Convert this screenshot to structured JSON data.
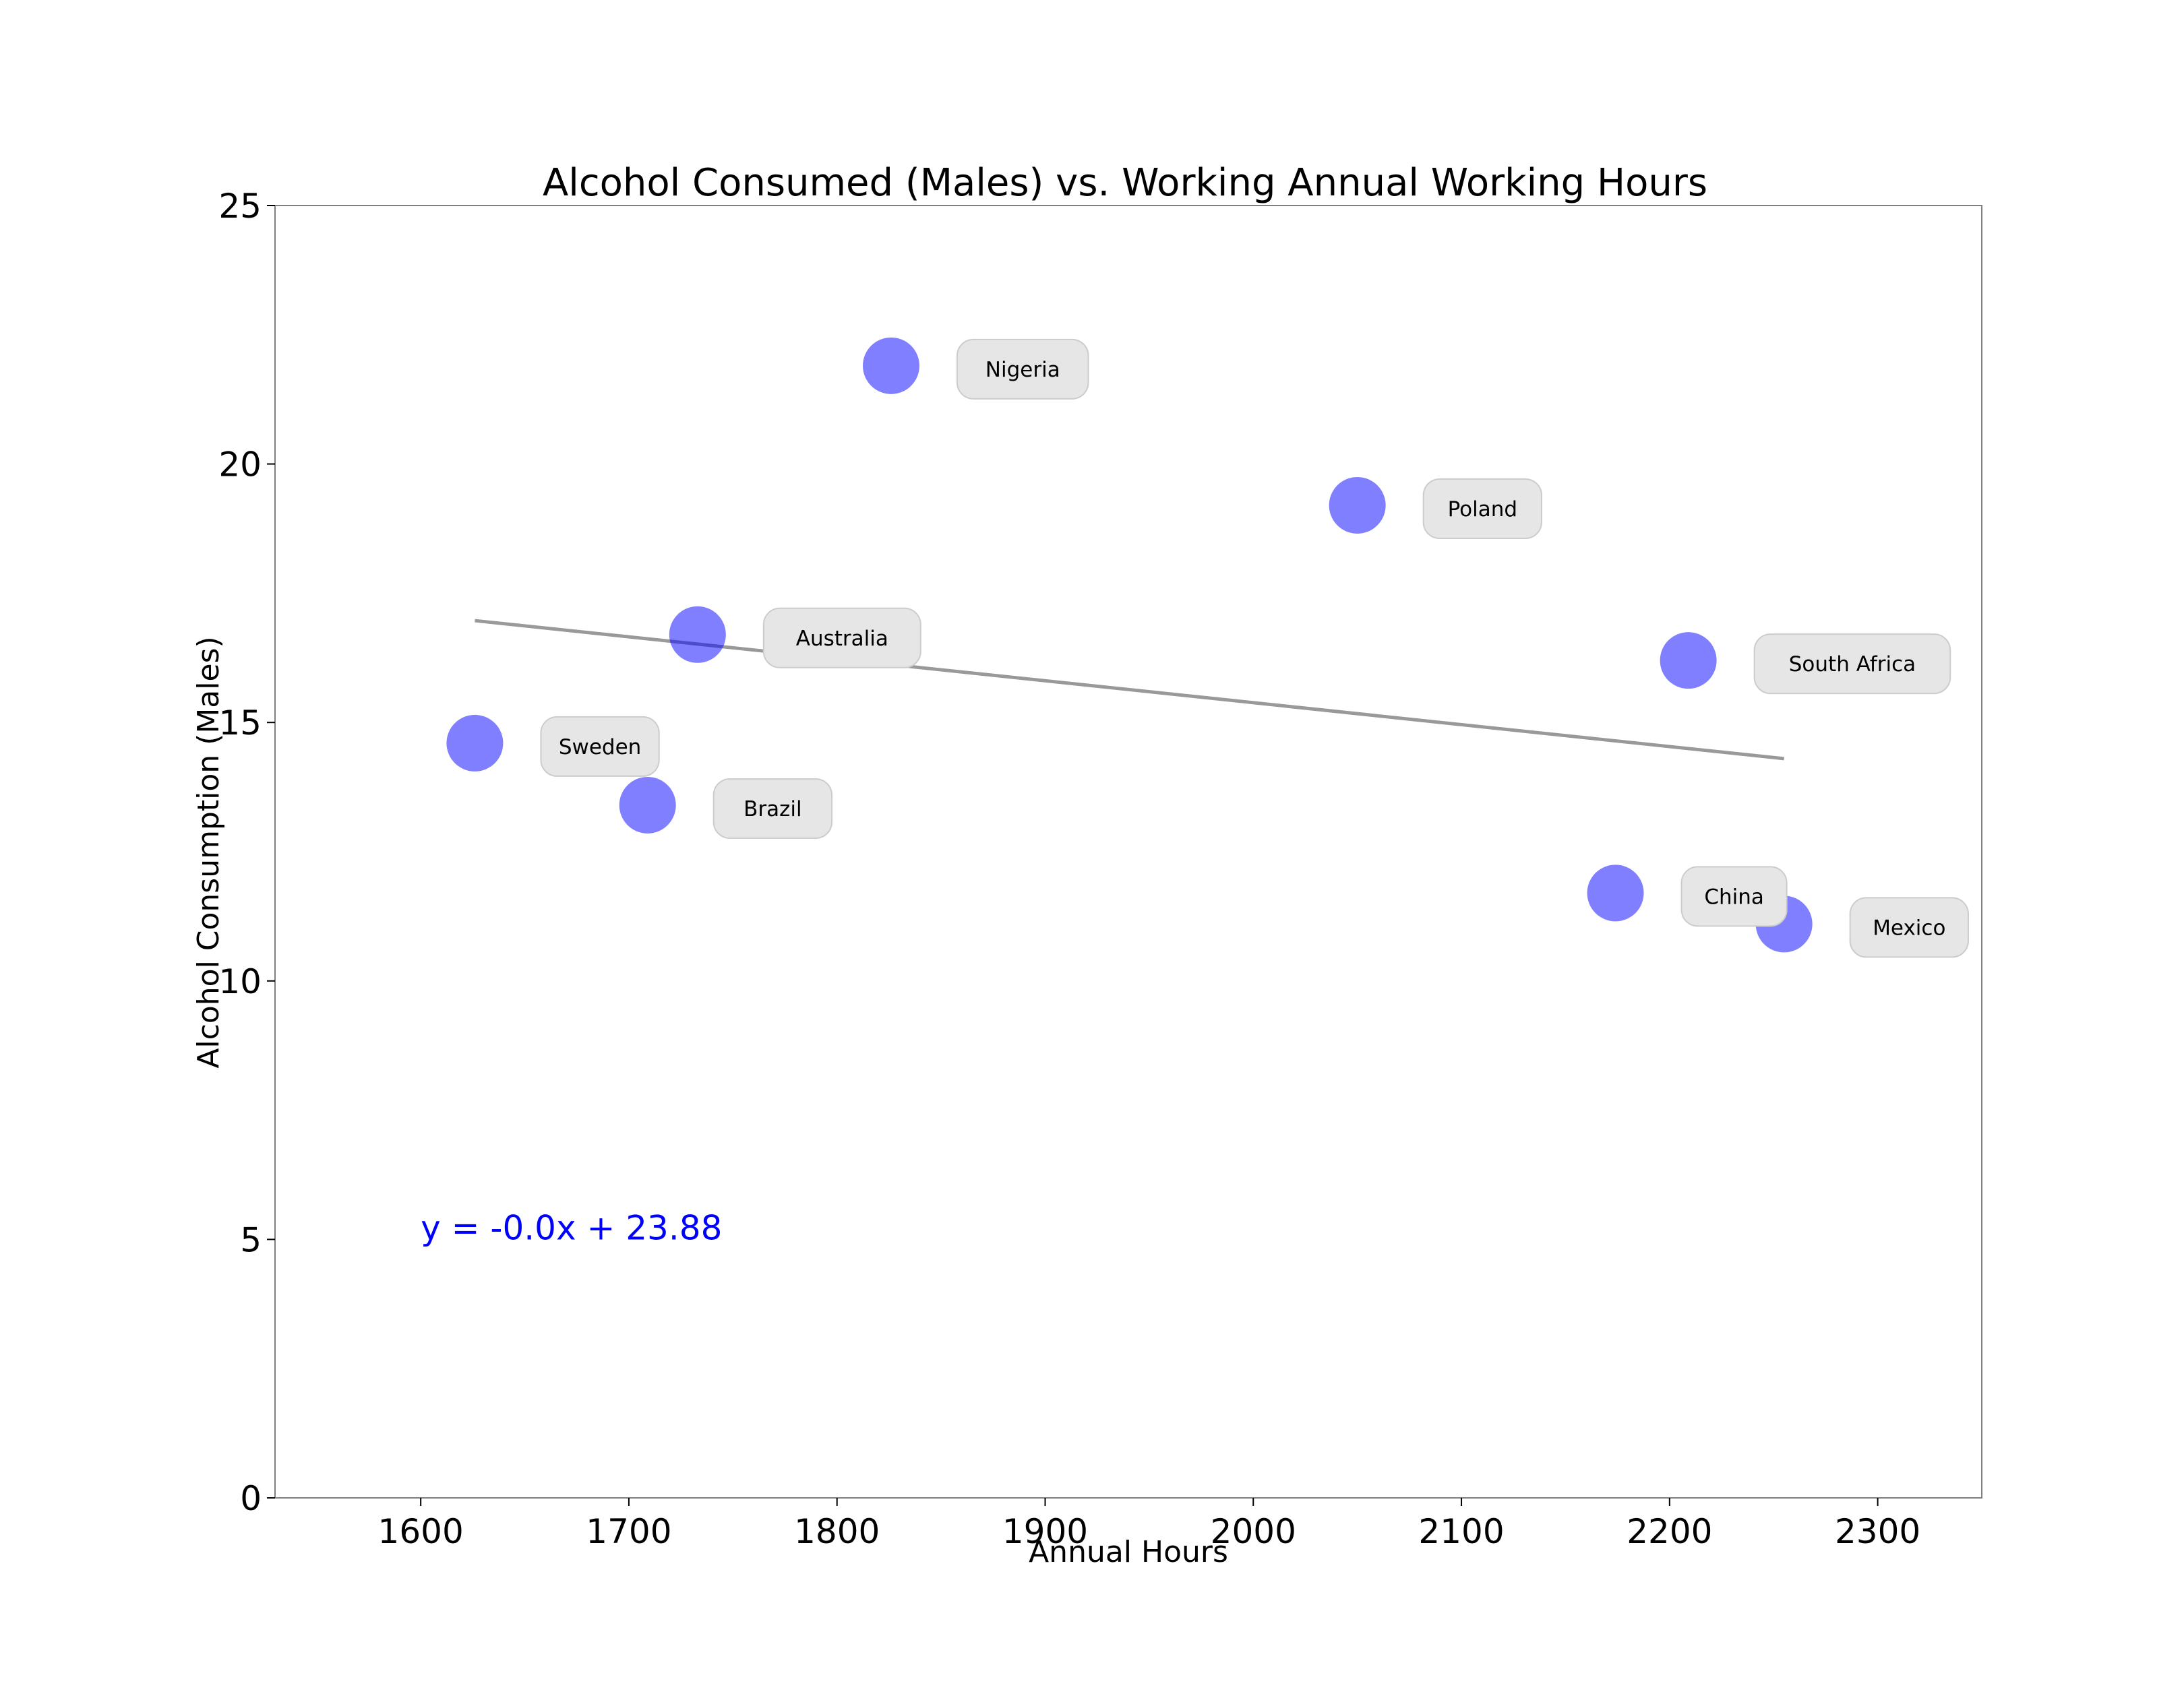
{
  "chart_data": {
    "type": "scatter",
    "title": "Alcohol Consumed (Males) vs. Working Annual Working Hours",
    "xlabel": "Annual Hours",
    "ylabel": "Alcohol Consumption (Males)",
    "xlim": [
      1530,
      2350
    ],
    "ylim": [
      0,
      25
    ],
    "x_ticks": [
      1600,
      1700,
      1800,
      1900,
      2000,
      2100,
      2200,
      2300
    ],
    "y_ticks": [
      0,
      5,
      10,
      15,
      20,
      25
    ],
    "grid": false,
    "legend": "none",
    "point_color": "#0000ff",
    "point_alpha": 0.5,
    "label_bg": "#e6e6e6",
    "label_border": "#cccccc",
    "trend_color": "#999999",
    "annotation_color": "#0000ff",
    "points": [
      {
        "label": "Sweden",
        "x": 1626,
        "y": 14.6
      },
      {
        "label": "Brazil",
        "x": 1709,
        "y": 13.4
      },
      {
        "label": "Australia",
        "x": 1733,
        "y": 16.7
      },
      {
        "label": "Nigeria",
        "x": 1826,
        "y": 21.9
      },
      {
        "label": "Poland",
        "x": 2050,
        "y": 19.2
      },
      {
        "label": "China",
        "x": 2174,
        "y": 11.7
      },
      {
        "label": "South Africa",
        "x": 2209,
        "y": 16.2
      },
      {
        "label": "Mexico",
        "x": 2255,
        "y": 11.1
      }
    ],
    "trendline": {
      "x": [
        1626,
        2255
      ],
      "y": [
        16.97,
        14.3
      ]
    },
    "equation": {
      "text": "y = -0.0x + 23.88",
      "x": 1600,
      "y": 5
    }
  }
}
